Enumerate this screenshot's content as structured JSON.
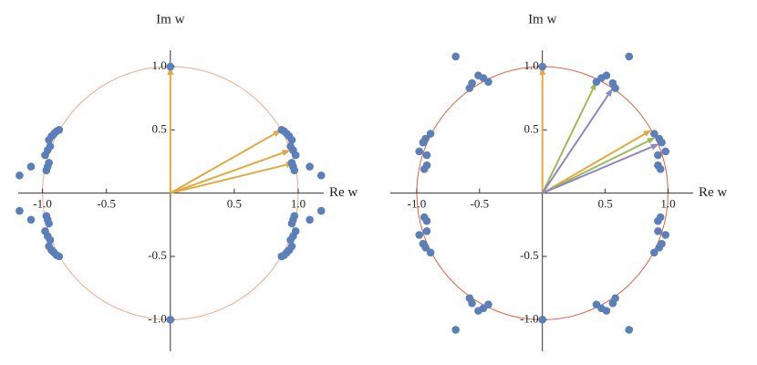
{
  "chart_data": [
    {
      "type": "scatter",
      "x_label": "Re w",
      "y_label": "Im w",
      "xlim": [
        -1.19,
        1.2
      ],
      "ylim": [
        -1.25,
        1.13
      ],
      "xticks": [
        {
          "value": -1,
          "label": "-1.0"
        },
        {
          "value": -0.5,
          "label": "-0.5"
        },
        0.5,
        {
          "value": 1,
          "label": "1.0"
        }
      ],
      "yticks": [
        {
          "value": -1,
          "label": "-1.0"
        },
        {
          "value": -0.5,
          "label": "-0.5"
        },
        0.5,
        {
          "value": 1,
          "label": "1.0"
        }
      ],
      "unit_circle": {
        "radius": 1,
        "color": "#f2a98c"
      },
      "color": "#5b7fb8",
      "x": [
        0.87,
        0.89,
        0.91,
        0.93,
        0.95,
        0.94,
        0.96,
        0.98,
        0.95,
        0.96,
        0.97,
        1.09,
        1.18,
        -0.87,
        -0.89,
        -0.91,
        -0.93,
        -0.95,
        -0.94,
        -0.96,
        -0.98,
        -0.95,
        -0.96,
        -0.97,
        -1.09,
        -1.18,
        -0.87,
        -0.89,
        -0.91,
        -0.93,
        -0.95,
        -0.94,
        -0.96,
        -0.98,
        -0.95,
        -0.96,
        -0.97,
        -1.09,
        -1.18,
        0.87,
        0.89,
        0.91,
        0.93,
        0.95,
        0.94,
        0.96,
        0.98,
        0.95,
        0.96,
        0.97,
        1.09,
        1.18,
        0,
        0
      ],
      "values": [
        0.5,
        0.49,
        0.47,
        0.45,
        0.42,
        0.37,
        0.34,
        0.3,
        0.24,
        0.21,
        0.18,
        0.21,
        0.14,
        0.5,
        0.49,
        0.47,
        0.45,
        0.42,
        0.37,
        0.34,
        0.3,
        0.24,
        0.21,
        0.18,
        0.21,
        0.14,
        -0.5,
        -0.49,
        -0.47,
        -0.45,
        -0.42,
        -0.37,
        -0.34,
        -0.3,
        -0.24,
        -0.21,
        -0.18,
        -0.21,
        -0.14,
        -0.5,
        -0.49,
        -0.47,
        -0.45,
        -0.42,
        -0.37,
        -0.34,
        -0.3,
        -0.24,
        -0.21,
        -0.18,
        -0.21,
        -0.14,
        1,
        -1
      ],
      "arrows": {
        "x": [
          0,
          0.87,
          0.94,
          0.97
        ],
        "y": [
          1,
          0.5,
          0.34,
          0.24
        ],
        "colors": [
          "#e2a940",
          "#e2a940",
          "#e2a940",
          "#e2a940"
        ]
      }
    },
    {
      "type": "scatter",
      "x_label": "Re w",
      "y_label": "Im w",
      "xlim": [
        -1.21,
        1.2
      ],
      "ylim": [
        -1.25,
        1.13
      ],
      "xticks": [
        {
          "value": -1,
          "label": "-1.0"
        },
        {
          "value": -0.5,
          "label": "-0.5"
        },
        0.5,
        {
          "value": 1,
          "label": "1.0"
        }
      ],
      "yticks": [
        {
          "value": -1,
          "label": "-1.0"
        },
        {
          "value": -0.5,
          "label": "-0.5"
        },
        0.5,
        {
          "value": 1,
          "label": "1.0"
        }
      ],
      "unit_circle": {
        "radius": 1,
        "color": "#e2623e"
      },
      "color": "#5b7fb8",
      "x": [
        0.43,
        0.47,
        0.51,
        0.56,
        0.58,
        0.69,
        0.89,
        0.93,
        0.95,
        0.98,
        0.92,
        0.92,
        0.94,
        -0.43,
        -0.47,
        -0.51,
        -0.56,
        -0.58,
        -0.69,
        -0.89,
        -0.93,
        -0.95,
        -0.98,
        -0.92,
        -0.92,
        -0.94,
        -0.43,
        -0.47,
        -0.51,
        -0.56,
        -0.58,
        -0.69,
        -0.89,
        -0.93,
        -0.95,
        -0.98,
        -0.92,
        -0.92,
        -0.94,
        0.43,
        0.47,
        0.51,
        0.56,
        0.58,
        0.69,
        0.89,
        0.93,
        0.95,
        0.98,
        0.92,
        0.92,
        0.94,
        0,
        0
      ],
      "values": [
        0.88,
        0.91,
        0.93,
        0.87,
        0.83,
        1.08,
        0.47,
        0.43,
        0.4,
        0.33,
        0.3,
        0.22,
        0.19,
        0.88,
        0.91,
        0.93,
        0.87,
        0.83,
        1.08,
        0.47,
        0.43,
        0.4,
        0.33,
        0.3,
        0.22,
        0.19,
        -0.88,
        -0.91,
        -0.93,
        -0.87,
        -0.83,
        -1.08,
        -0.47,
        -0.43,
        -0.4,
        -0.33,
        -0.3,
        -0.22,
        -0.19,
        -0.88,
        -0.91,
        -0.93,
        -0.87,
        -0.83,
        -1.08,
        -0.47,
        -0.43,
        -0.4,
        -0.33,
        -0.3,
        -0.22,
        -0.19,
        1,
        -1
      ],
      "arrows": {
        "x": [
          0,
          0.87,
          0.43,
          0.9,
          0.56,
          0.93
        ],
        "y": [
          1,
          0.5,
          0.88,
          0.44,
          0.83,
          0.39
        ],
        "colors": [
          "#e2a940",
          "#e2a940",
          "#9dbb58",
          "#9dbb58",
          "#8d86c2",
          "#8d86c2"
        ]
      }
    }
  ]
}
